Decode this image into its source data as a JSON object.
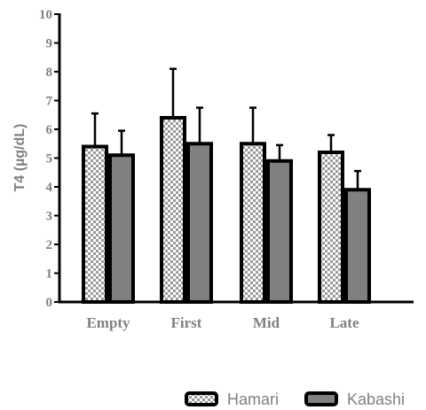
{
  "chart_data": {
    "type": "bar",
    "ylabel": "T4 (µg/dL)",
    "xlabel": "",
    "ylim": [
      0,
      10
    ],
    "yticks": [
      0,
      1,
      2,
      3,
      4,
      5,
      6,
      7,
      8,
      9,
      10
    ],
    "categories": [
      "Empty",
      "First",
      "Mid",
      "Late"
    ],
    "series": [
      {
        "name": "Hamari",
        "values": [
          5.4,
          6.4,
          5.5,
          5.2
        ],
        "error": [
          1.15,
          1.7,
          1.25,
          0.6
        ],
        "pattern": "checkered",
        "color": "#ffffff"
      },
      {
        "name": "Kabashi",
        "values": [
          5.1,
          5.5,
          4.9,
          3.9
        ],
        "error": [
          0.85,
          1.25,
          0.55,
          0.65
        ],
        "pattern": "solid",
        "color": "#808080"
      }
    ],
    "legend_position": "bottom-right",
    "error_bars": "upper"
  }
}
